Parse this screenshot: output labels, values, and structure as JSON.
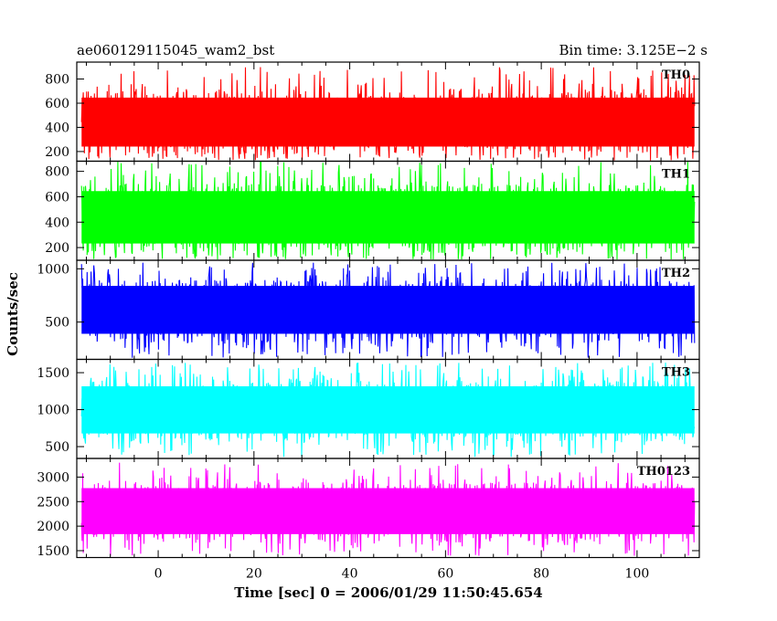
{
  "header": {
    "left_title": "ae060129115045_wam2_bst",
    "right_title": "Bin time: 3.125E−2 s"
  },
  "chart_data": {
    "type": "line",
    "title": "ae060129115045_wam2_bst",
    "subtitle": "Bin time: 3.125E−2 s",
    "xlabel": "Time [sec] 0 = 2006/01/29 11:50:45.654",
    "ylabel": "Counts/sec",
    "xlim": [
      -17,
      113
    ],
    "x_data_range": [
      -16,
      112
    ],
    "x_ticks": [
      0,
      20,
      40,
      60,
      80,
      100
    ],
    "grid": false,
    "layout": "5 stacked panels sharing the x axis",
    "panels": [
      {
        "name": "TH0",
        "color": "#ff0000",
        "ylim": [
          120,
          940
        ],
        "y_ticks": [
          200,
          400,
          600,
          800
        ],
        "typical_range": [
          160,
          700
        ],
        "mean": 420,
        "peak": 900
      },
      {
        "name": "TH1",
        "color": "#00ff00",
        "ylim": [
          100,
          880
        ],
        "y_ticks": [
          200,
          400,
          600,
          800
        ],
        "typical_range": [
          150,
          700
        ],
        "mean": 410,
        "peak": 880
      },
      {
        "name": "TH2",
        "color": "#0000ff",
        "ylim": [
          150,
          1080
        ],
        "y_ticks": [
          500,
          1000
        ],
        "typical_range": [
          300,
          900
        ],
        "mean": 560,
        "peak": 1060
      },
      {
        "name": "TH3",
        "color": "#00ffff",
        "ylim": [
          340,
          1680
        ],
        "y_ticks": [
          500,
          1000,
          1500
        ],
        "typical_range": [
          550,
          1400
        ],
        "mean": 950,
        "peak": 1640
      },
      {
        "name": "TH0123",
        "color": "#ff00ff",
        "ylim": [
          1360,
          3380
        ],
        "y_ticks": [
          1500,
          2000,
          2500,
          3000
        ],
        "typical_range": [
          1650,
          2900
        ],
        "mean": 2250,
        "peak": 3300
      }
    ]
  }
}
